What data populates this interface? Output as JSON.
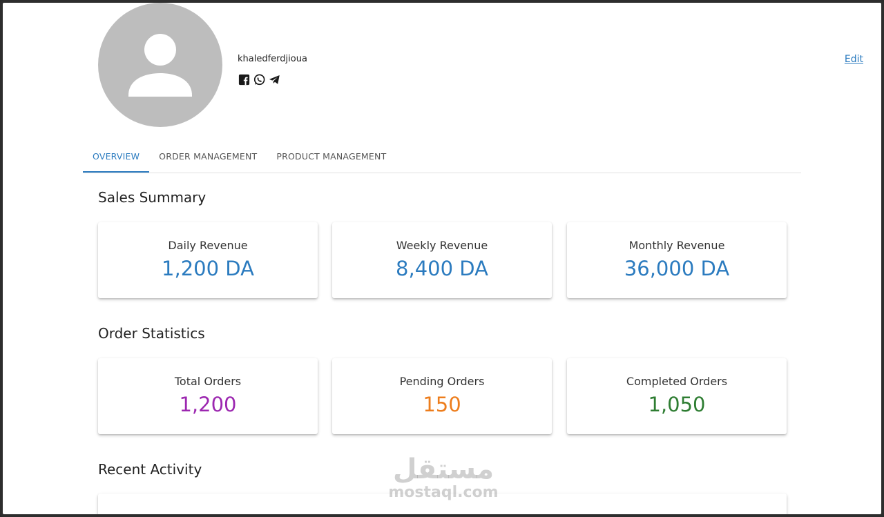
{
  "profile": {
    "username": "khaledferdjioua",
    "edit_label": "Edit",
    "socials": [
      "facebook-icon",
      "whatsapp-icon",
      "telegram-icon"
    ]
  },
  "tabs": [
    {
      "label": "OVERVIEW",
      "active": true
    },
    {
      "label": "ORDER MANAGEMENT",
      "active": false
    },
    {
      "label": "PRODUCT MANAGEMENT",
      "active": false
    }
  ],
  "sales_summary": {
    "title": "Sales Summary",
    "cards": [
      {
        "label": "Daily Revenue",
        "value": "1,200 DA",
        "color": "#2b7bbf"
      },
      {
        "label": "Weekly Revenue",
        "value": "8,400 DA",
        "color": "#2b7bbf"
      },
      {
        "label": "Monthly Revenue",
        "value": "36,000 DA",
        "color": "#2b7bbf"
      }
    ]
  },
  "order_statistics": {
    "title": "Order Statistics",
    "cards": [
      {
        "label": "Total Orders",
        "value": "1,200",
        "color": "#9c27b0"
      },
      {
        "label": "Pending Orders",
        "value": "150",
        "color": "#ed7d1c"
      },
      {
        "label": "Completed Orders",
        "value": "1,050",
        "color": "#2e7d32"
      }
    ]
  },
  "recent_activity": {
    "title": "Recent Activity"
  },
  "watermark": {
    "arabic": "مستقل",
    "latin": "mostaql.com"
  }
}
